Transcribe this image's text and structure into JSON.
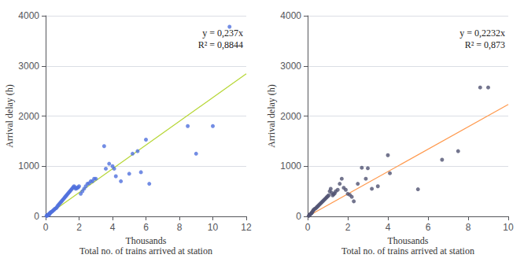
{
  "chart_data": [
    {
      "type": "scatter",
      "y_label": "Arrival delay (h)",
      "x_label": "Thousands",
      "x_title": "Total no. of trains arrived at station",
      "annotations": [
        "y = 0,237x",
        "R² = 0,8844"
      ],
      "xlim": [
        0,
        12
      ],
      "xticks": [
        0,
        2,
        4,
        6,
        8,
        10,
        12
      ],
      "ylim": [
        0,
        4000
      ],
      "yticks": [
        0,
        1000,
        2000,
        3000,
        4000
      ],
      "grid": "y",
      "series": [
        {
          "type": "scatter",
          "x": [
            0.05,
            0.08,
            0.1,
            0.12,
            0.15,
            0.18,
            0.2,
            0.22,
            0.25,
            0.28,
            0.3,
            0.35,
            0.4,
            0.45,
            0.5,
            0.55,
            0.6,
            0.65,
            0.7,
            0.75,
            0.8,
            0.85,
            0.9,
            0.95,
            1.0,
            1.05,
            1.1,
            1.15,
            1.2,
            1.25,
            1.3,
            1.35,
            1.4,
            1.45,
            1.5,
            1.55,
            1.6,
            1.65,
            1.7,
            1.75,
            1.8,
            1.85,
            1.9,
            1.95,
            2.0,
            2.1,
            2.2,
            2.3,
            2.4,
            2.5,
            2.6,
            2.7,
            2.8,
            2.9,
            3.0,
            3.5,
            3.6,
            3.8,
            4.0,
            4.1,
            4.2,
            4.5,
            5.0,
            5.2,
            5.5,
            5.7,
            6.0,
            6.2,
            8.5,
            9.0,
            10.0,
            11.0
          ],
          "values": [
            10,
            20,
            15,
            25,
            30,
            40,
            50,
            35,
            60,
            70,
            80,
            90,
            100,
            120,
            130,
            150,
            160,
            170,
            200,
            220,
            240,
            260,
            280,
            300,
            320,
            340,
            360,
            380,
            400,
            420,
            440,
            460,
            480,
            500,
            520,
            540,
            560,
            580,
            600,
            580,
            550,
            560,
            570,
            580,
            600,
            450,
            500,
            550,
            600,
            650,
            660,
            700,
            700,
            750,
            750,
            1400,
            950,
            1050,
            1000,
            950,
            800,
            700,
            850,
            1250,
            1300,
            880,
            1530,
            650,
            1800,
            1250,
            1800,
            3780
          ]
        },
        {
          "type": "line",
          "x": [
            0,
            12
          ],
          "values": [
            0,
            2844
          ]
        }
      ]
    },
    {
      "type": "scatter",
      "y_label": "Arrival delay (h)",
      "x_label": "Thousands",
      "x_title": "Total no. of trains arrived at station",
      "annotations": [
        "y = 0,2232x",
        "R² = 0,873"
      ],
      "xlim": [
        0,
        10
      ],
      "xticks": [
        0,
        2,
        4,
        6,
        8,
        10
      ],
      "ylim": [
        0,
        4000
      ],
      "yticks": [
        0,
        1000,
        2000,
        3000,
        4000
      ],
      "grid": "y",
      "series": [
        {
          "type": "scatter",
          "x": [
            0.05,
            0.08,
            0.1,
            0.12,
            0.15,
            0.18,
            0.2,
            0.22,
            0.25,
            0.28,
            0.3,
            0.35,
            0.4,
            0.45,
            0.5,
            0.55,
            0.6,
            0.65,
            0.7,
            0.75,
            0.8,
            0.85,
            0.9,
            0.95,
            1.0,
            1.05,
            1.1,
            1.15,
            1.2,
            1.25,
            1.3,
            1.35,
            1.4,
            1.5,
            1.6,
            1.7,
            1.8,
            1.9,
            2.0,
            2.1,
            2.2,
            2.3,
            2.5,
            2.7,
            2.9,
            3.0,
            3.2,
            3.5,
            4.0,
            4.1,
            5.5,
            6.7,
            7.5,
            8.6,
            9.0
          ],
          "values": [
            10,
            20,
            30,
            40,
            50,
            60,
            70,
            80,
            100,
            120,
            130,
            150,
            160,
            180,
            200,
            220,
            240,
            260,
            280,
            300,
            320,
            340,
            360,
            380,
            400,
            420,
            500,
            550,
            470,
            420,
            440,
            460,
            500,
            530,
            650,
            750,
            570,
            530,
            450,
            430,
            390,
            300,
            650,
            970,
            750,
            960,
            550,
            600,
            1220,
            860,
            540,
            1130,
            1300,
            2570,
            2570
          ]
        },
        {
          "type": "line",
          "x": [
            0,
            10
          ],
          "values": [
            0,
            2232
          ]
        }
      ]
    }
  ]
}
